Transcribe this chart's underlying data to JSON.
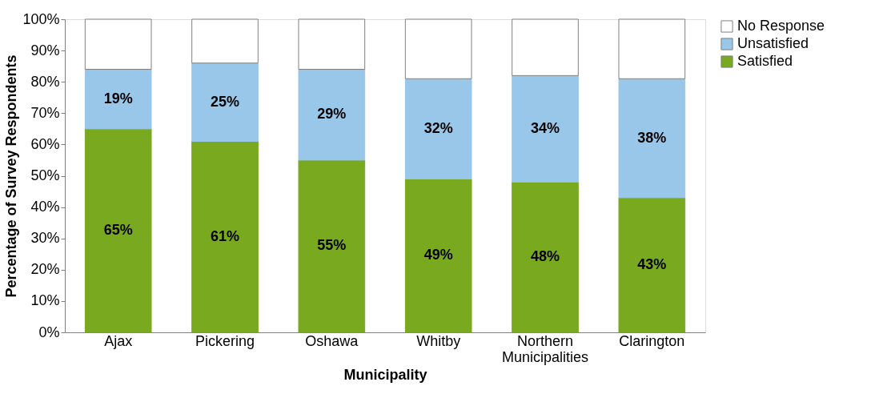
{
  "chart_data": {
    "type": "bar",
    "stacked": true,
    "xlabel": "Municipality",
    "ylabel": "Percentage of Survey Respondents",
    "categories": [
      "Ajax",
      "Pickering",
      "Oshawa",
      "Whitby",
      "Northern Municipalities",
      "Clarington"
    ],
    "series": [
      {
        "name": "Satisfied",
        "color": "#78a91e",
        "values": [
          65,
          61,
          55,
          49,
          48,
          43
        ],
        "value_labels": [
          "65%",
          "61%",
          "55%",
          "49%",
          "48%",
          "43%"
        ]
      },
      {
        "name": "Unsatisfied",
        "color": "#99c7ea",
        "values": [
          19,
          25,
          29,
          32,
          34,
          38
        ],
        "value_labels": [
          "19%",
          "25%",
          "29%",
          "32%",
          "34%",
          "38%"
        ]
      },
      {
        "name": "No Response",
        "color": "#ffffff",
        "values": [
          16,
          14,
          16,
          19,
          18,
          19
        ]
      }
    ],
    "ylim": [
      0,
      100
    ],
    "yticks": [
      {
        "value": 0,
        "label": "0%"
      },
      {
        "value": 10,
        "label": "10%"
      },
      {
        "value": 20,
        "label": "20%"
      },
      {
        "value": 30,
        "label": "30%"
      },
      {
        "value": 40,
        "label": "40%"
      },
      {
        "value": 50,
        "label": "50%"
      },
      {
        "value": 60,
        "label": "60%"
      },
      {
        "value": 70,
        "label": "70%"
      },
      {
        "value": 80,
        "label": "80%"
      },
      {
        "value": 90,
        "label": "90%"
      },
      {
        "value": 100,
        "label": "100%"
      }
    ],
    "grid": false,
    "legend": "right"
  }
}
